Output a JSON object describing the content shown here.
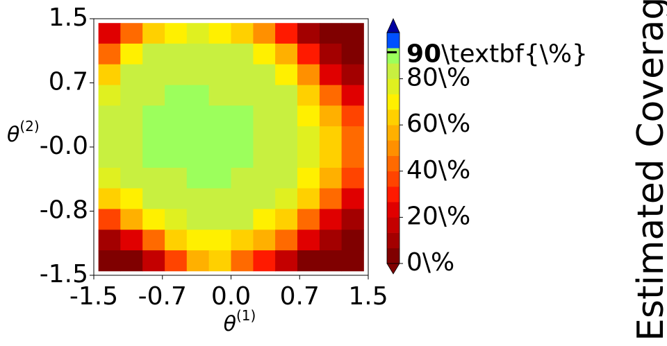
{
  "chart_data": {
    "type": "contour",
    "xlabel": {
      "base": "θ",
      "sup": "(1)"
    },
    "ylabel": {
      "base": "θ",
      "sup": "(2)"
    },
    "xlim": [
      -1.5,
      1.5
    ],
    "ylim": [
      -1.5,
      1.5
    ],
    "xticks": [
      -1.5,
      {
        "value": -0.75,
        "label": "-0.7"
      },
      {
        "value": 0,
        "label": "0.0"
      },
      {
        "value": 0.75,
        "label": "0.7"
      },
      1.5
    ],
    "yticks": [
      1.5,
      {
        "value": 0.75,
        "label": "0.7"
      },
      {
        "value": 0,
        "label": "-0.0"
      },
      {
        "value": -0.75,
        "label": "-0.8"
      },
      -1.5
    ],
    "x": [
      -1.329,
      -1.088,
      -0.846,
      -0.604,
      -0.363,
      -0.121,
      0.121,
      0.363,
      0.604,
      0.846,
      1.088,
      1.329
    ],
    "y": [
      1.329,
      1.088,
      0.846,
      0.604,
      0.363,
      0.121,
      -0.121,
      -0.363,
      -0.604,
      -0.846,
      -1.088,
      -1.329
    ],
    "z": [
      [
        20,
        45,
        65,
        72,
        75,
        72,
        65,
        50,
        30,
        10,
        3,
        2
      ],
      [
        45,
        70,
        80,
        82,
        83,
        82,
        80,
        72,
        55,
        30,
        10,
        5
      ],
      [
        65,
        80,
        85,
        86,
        86,
        86,
        85,
        82,
        72,
        50,
        25,
        10
      ],
      [
        75,
        84,
        86,
        87,
        87,
        86,
        86,
        85,
        80,
        65,
        40,
        20
      ],
      [
        80,
        85,
        87,
        87,
        87,
        87,
        87,
        86,
        83,
        72,
        55,
        35
      ],
      [
        82,
        86,
        87,
        87,
        87,
        87,
        87,
        86,
        84,
        78,
        62,
        45
      ],
      [
        80,
        85,
        87,
        87,
        87,
        87,
        87,
        86,
        85,
        78,
        62,
        45
      ],
      [
        75,
        80,
        84,
        86,
        87,
        87,
        86,
        85,
        82,
        72,
        55,
        35
      ],
      [
        60,
        72,
        82,
        85,
        86,
        86,
        85,
        82,
        75,
        62,
        40,
        20
      ],
      [
        35,
        55,
        70,
        78,
        82,
        83,
        80,
        72,
        62,
        45,
        25,
        10
      ],
      [
        10,
        25,
        45,
        60,
        70,
        72,
        65,
        55,
        40,
        25,
        10,
        3
      ],
      [
        2,
        5,
        15,
        35,
        55,
        60,
        45,
        30,
        15,
        5,
        2,
        1
      ]
    ],
    "levels": [
      0,
      6.67,
      13.33,
      20,
      26.67,
      33.33,
      40,
      46.67,
      53.33,
      60,
      66.67,
      73.33,
      80,
      86.67,
      93.33,
      100
    ],
    "colors": [
      "#800000",
      "#a30000",
      "#c40000",
      "#e00000",
      "#ff1a00",
      "#ff4400",
      "#ff6a00",
      "#ff9000",
      "#ffb000",
      "#ffd000",
      "#fff000",
      "#e0f020",
      "#c8f040",
      "#9cff5c",
      "#0050ff"
    ],
    "under_color": "#800000",
    "over_color": "#0000a0",
    "colorbar_ticks": [
      {
        "value": 0,
        "label": "0\\%"
      },
      {
        "value": 20,
        "label": "20\\%"
      },
      {
        "value": 40,
        "label": "40\\%"
      },
      {
        "value": 60,
        "label": "60\\%"
      },
      {
        "value": 80,
        "label": "80\\%"
      }
    ],
    "target": {
      "value": 90,
      "label": [
        "90",
        "\\textbf{\\%}"
      ]
    },
    "colorbar_label": "Estimated Coverage"
  }
}
